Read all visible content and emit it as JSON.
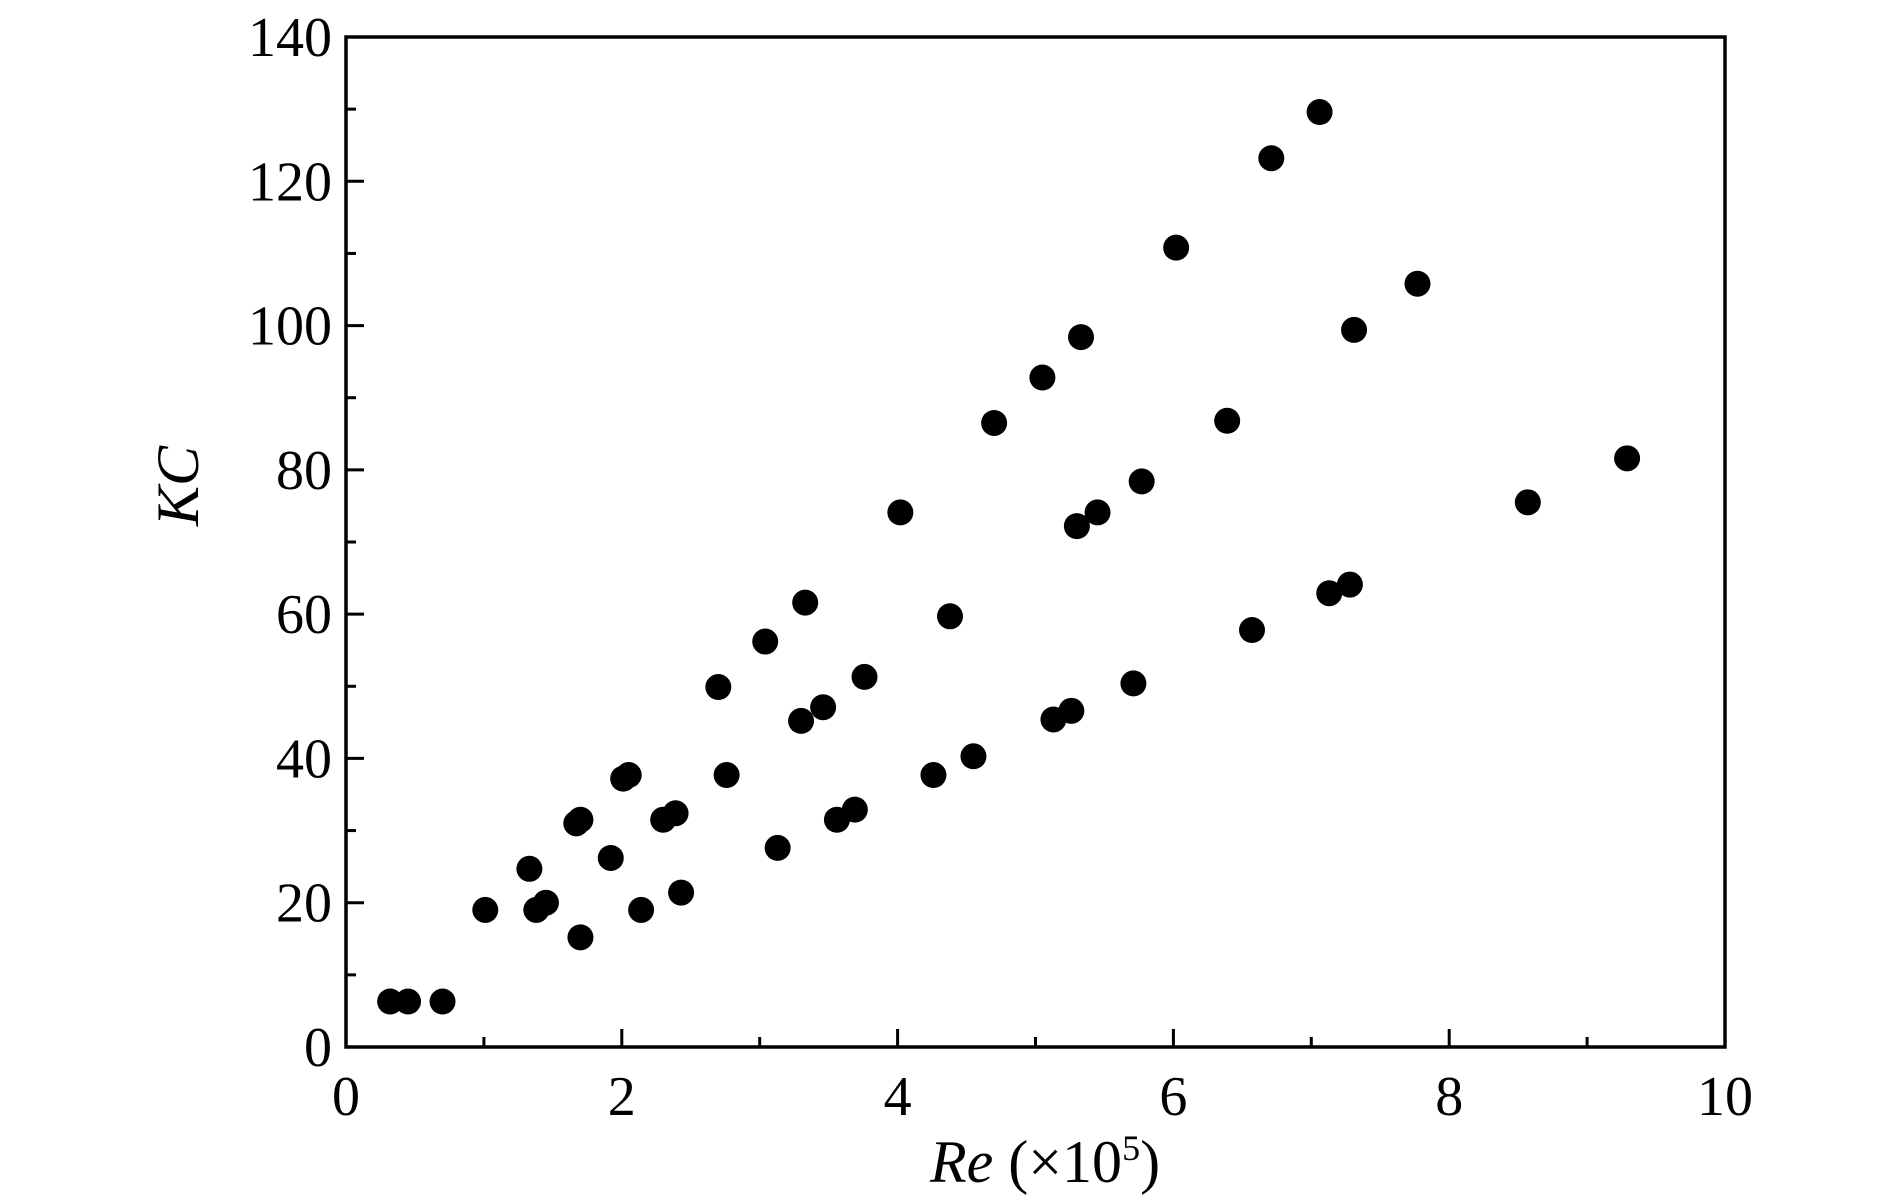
{
  "chart_data": {
    "type": "scatter",
    "xlabel": {
      "italic": "Re",
      "plain_prefix": " (×10",
      "superscript": "5",
      "plain_suffix": ")"
    },
    "ylabel": "KC",
    "xlim": [
      0,
      10
    ],
    "ylim": [
      0,
      140
    ],
    "x_ticks": [
      0,
      2,
      4,
      6,
      8,
      10
    ],
    "y_ticks": [
      0,
      20,
      40,
      60,
      80,
      100,
      120,
      140
    ],
    "x_minor_ticks": [
      1,
      3,
      5,
      7,
      9
    ],
    "y_minor_ticks": [
      10,
      30,
      50,
      70,
      90,
      110,
      130
    ],
    "grid": false,
    "marker_color": "#000000",
    "points": [
      {
        "x": 0.32,
        "y": 6.3
      },
      {
        "x": 0.45,
        "y": 6.3
      },
      {
        "x": 0.7,
        "y": 6.3
      },
      {
        "x": 1.01,
        "y": 19.0
      },
      {
        "x": 1.33,
        "y": 24.7
      },
      {
        "x": 1.38,
        "y": 19.0
      },
      {
        "x": 1.45,
        "y": 20.0
      },
      {
        "x": 1.67,
        "y": 31.0
      },
      {
        "x": 1.7,
        "y": 31.5
      },
      {
        "x": 1.7,
        "y": 15.2
      },
      {
        "x": 1.92,
        "y": 26.2
      },
      {
        "x": 2.01,
        "y": 37.2
      },
      {
        "x": 2.05,
        "y": 37.7
      },
      {
        "x": 2.14,
        "y": 19.0
      },
      {
        "x": 2.3,
        "y": 31.5
      },
      {
        "x": 2.39,
        "y": 32.4
      },
      {
        "x": 2.43,
        "y": 21.4
      },
      {
        "x": 2.7,
        "y": 49.9
      },
      {
        "x": 2.76,
        "y": 37.7
      },
      {
        "x": 3.04,
        "y": 56.2
      },
      {
        "x": 3.13,
        "y": 27.6
      },
      {
        "x": 3.3,
        "y": 45.2
      },
      {
        "x": 3.33,
        "y": 61.6
      },
      {
        "x": 3.46,
        "y": 47.1
      },
      {
        "x": 3.56,
        "y": 31.5
      },
      {
        "x": 3.69,
        "y": 32.9
      },
      {
        "x": 3.76,
        "y": 51.3
      },
      {
        "x": 4.02,
        "y": 74.1
      },
      {
        "x": 4.26,
        "y": 37.7
      },
      {
        "x": 4.38,
        "y": 59.7
      },
      {
        "x": 4.55,
        "y": 40.3
      },
      {
        "x": 4.7,
        "y": 86.5
      },
      {
        "x": 5.05,
        "y": 92.8
      },
      {
        "x": 5.13,
        "y": 45.4
      },
      {
        "x": 5.26,
        "y": 46.6
      },
      {
        "x": 5.3,
        "y": 72.2
      },
      {
        "x": 5.33,
        "y": 98.4
      },
      {
        "x": 5.45,
        "y": 74.1
      },
      {
        "x": 5.71,
        "y": 50.4
      },
      {
        "x": 5.77,
        "y": 78.4
      },
      {
        "x": 6.02,
        "y": 110.8
      },
      {
        "x": 6.39,
        "y": 86.8
      },
      {
        "x": 6.57,
        "y": 57.8
      },
      {
        "x": 6.71,
        "y": 123.2
      },
      {
        "x": 7.06,
        "y": 129.6
      },
      {
        "x": 7.13,
        "y": 62.9
      },
      {
        "x": 7.28,
        "y": 64.1
      },
      {
        "x": 7.31,
        "y": 99.4
      },
      {
        "x": 7.77,
        "y": 105.8
      },
      {
        "x": 8.57,
        "y": 75.5
      },
      {
        "x": 9.29,
        "y": 81.6
      }
    ]
  }
}
